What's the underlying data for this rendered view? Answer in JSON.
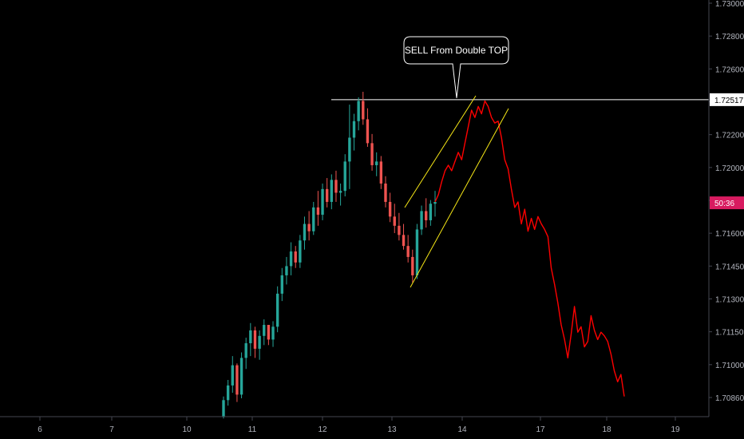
{
  "chart_data": {
    "type": "candlestick",
    "title": "",
    "xlabel": "",
    "ylabel": "",
    "ylim": [
      1.7079,
      1.7306
    ],
    "xlim": [
      5.5,
      19.5
    ],
    "grid": false,
    "colors": {
      "background": "#000000",
      "up": "#26a69a",
      "down": "#ef5350",
      "projection": "#ff0000",
      "channel": "#f5e616",
      "level": "#ffffff",
      "axis": "#b2b5be",
      "badge": "#d81b60"
    },
    "y_ticks": [
      "1.73000",
      "1.72800",
      "1.72600",
      "1.72400",
      "1.72200",
      "1.72000",
      "1.71800",
      "1.71600",
      "1.71450",
      "1.71300",
      "1.71150",
      "1.71000",
      "1.70860"
    ],
    "x_ticks": [
      {
        "label": "6",
        "x": 6.0
      },
      {
        "label": "7",
        "x": 7.0
      },
      {
        "label": "10",
        "x": 8.0
      },
      {
        "label": "11",
        "x": 9.0
      },
      {
        "label": "12",
        "x": 10.0
      },
      {
        "label": "13",
        "x": 11.0
      },
      {
        "label": "14",
        "x": 12.0
      },
      {
        "label": "17",
        "x": 13.0
      },
      {
        "label": "18",
        "x": 14.0
      },
      {
        "label": "19",
        "x": 15.0
      }
    ],
    "level": {
      "value": 1.72517,
      "label": "1.72517",
      "x_start": 10.1
    },
    "current_price_badge": {
      "label": "50:36",
      "value": 1.71955
    },
    "annotation": {
      "text": "SELL From Double TOP",
      "x": 11.93,
      "y": 1.7274
    },
    "channel": [
      {
        "x1": 10.74,
        "y1": 1.7192,
        "x2": 11.95,
        "y2": 1.7251
      },
      {
        "x1": 10.75,
        "y1": 1.7147,
        "x2": 12.14,
        "y2": 1.7242
      }
    ],
    "candle_ohlc": [
      [
        1.7079,
        1.709,
        1.7078,
        1.7088
      ],
      [
        1.7088,
        1.7099,
        1.7085,
        1.7096
      ],
      [
        1.7096,
        1.7112,
        1.7092,
        1.7107
      ],
      [
        1.7107,
        1.7108,
        1.7087,
        1.7091
      ],
      [
        1.7091,
        1.7114,
        1.7089,
        1.7111
      ],
      [
        1.7111,
        1.7122,
        1.7105,
        1.7119
      ],
      [
        1.7119,
        1.713,
        1.7112,
        1.7126
      ],
      [
        1.7126,
        1.7128,
        1.7111,
        1.7116
      ],
      [
        1.7116,
        1.7126,
        1.711,
        1.7123
      ],
      [
        1.7123,
        1.7132,
        1.7118,
        1.7129
      ],
      [
        1.7129,
        1.7129,
        1.7118,
        1.7121
      ],
      [
        1.7121,
        1.7131,
        1.7117,
        1.7128
      ],
      [
        1.7128,
        1.715,
        1.7125,
        1.7146
      ],
      [
        1.7146,
        1.716,
        1.7142,
        1.7156
      ],
      [
        1.7156,
        1.7166,
        1.7151,
        1.7161
      ],
      [
        1.7161,
        1.7174,
        1.7156,
        1.7169
      ],
      [
        1.7169,
        1.7172,
        1.716,
        1.7163
      ],
      [
        1.7163,
        1.7178,
        1.716,
        1.7175
      ],
      [
        1.7175,
        1.7188,
        1.717,
        1.7184
      ],
      [
        1.7184,
        1.7191,
        1.7175,
        1.718
      ],
      [
        1.718,
        1.7196,
        1.7178,
        1.7193
      ],
      [
        1.7193,
        1.7202,
        1.7183,
        1.7189
      ],
      [
        1.7189,
        1.7206,
        1.7186,
        1.7203
      ],
      [
        1.7203,
        1.7209,
        1.7193,
        1.7196
      ],
      [
        1.7196,
        1.7211,
        1.7192,
        1.7208
      ],
      [
        1.7208,
        1.7213,
        1.7196,
        1.7201
      ],
      [
        1.7201,
        1.7206,
        1.7194,
        1.7202
      ],
      [
        1.7202,
        1.7222,
        1.7199,
        1.7218
      ],
      [
        1.7218,
        1.7249,
        1.7203,
        1.7231
      ],
      [
        1.7231,
        1.7244,
        1.7224,
        1.724
      ],
      [
        1.724,
        1.7253,
        1.7235,
        1.7251
      ],
      [
        1.7251,
        1.7256,
        1.7238,
        1.7241
      ],
      [
        1.7241,
        1.7247,
        1.7226,
        1.7228
      ],
      [
        1.7228,
        1.7233,
        1.7213,
        1.7216
      ],
      [
        1.7216,
        1.7223,
        1.721,
        1.7218
      ],
      [
        1.7218,
        1.7221,
        1.7203,
        1.7206
      ],
      [
        1.7206,
        1.721,
        1.7193,
        1.7196
      ],
      [
        1.7196,
        1.7201,
        1.7185,
        1.7188
      ],
      [
        1.7188,
        1.7195,
        1.7179,
        1.7183
      ],
      [
        1.7183,
        1.719,
        1.7175,
        1.7178
      ],
      [
        1.7178,
        1.7184,
        1.717,
        1.7172
      ],
      [
        1.7172,
        1.7178,
        1.7163,
        1.7166
      ],
      [
        1.7166,
        1.717,
        1.7152,
        1.7156
      ],
      [
        1.7156,
        1.7184,
        1.7154,
        1.7181
      ],
      [
        1.7181,
        1.7194,
        1.7178,
        1.7191
      ],
      [
        1.7191,
        1.7198,
        1.7182,
        1.7186
      ],
      [
        1.7186,
        1.7197,
        1.7183,
        1.7195
      ],
      [
        1.7195,
        1.7202,
        1.7188,
        1.7196
      ]
    ],
    "candle_x_start": 9.3,
    "candle_x_end": 10.48,
    "projection_x_start": 10.5,
    "projection_x_end": 14.2,
    "projection": [
      1.7196,
      1.72,
      1.7207,
      1.7213,
      1.7216,
      1.7213,
      1.7218,
      1.7223,
      1.7219,
      1.7228,
      1.7237,
      1.7246,
      1.7242,
      1.7248,
      1.7244,
      1.7251,
      1.7248,
      1.7242,
      1.7239,
      1.724,
      1.7231,
      1.7219,
      1.7214,
      1.7203,
      1.7193,
      1.7196,
      1.7184,
      1.7192,
      1.718,
      1.7187,
      1.7181,
      1.7188,
      1.7184,
      1.7181,
      1.7177,
      1.716,
      1.7151,
      1.7141,
      1.7129,
      1.7121,
      1.7111,
      1.7124,
      1.7139,
      1.7125,
      1.7128,
      1.7117,
      1.712,
      1.7134,
      1.7126,
      1.7121,
      1.7125,
      1.7123,
      1.712,
      1.7113,
      1.7104,
      1.7098,
      1.7102,
      1.709
    ]
  }
}
